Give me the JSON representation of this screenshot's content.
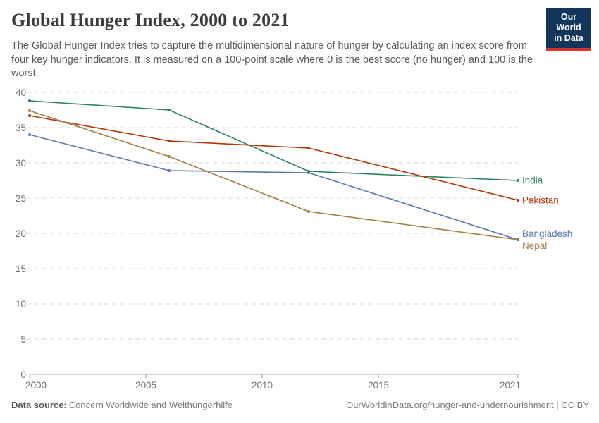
{
  "header": {
    "title": "Global Hunger Index, 2000 to 2021",
    "subtitle": "The Global Hunger Index tries to capture the multidimensional nature of hunger by calculating an index score from four key hunger indicators. It is measured on a 100-point scale where 0 is the best score (no hunger) and 100 is the worst."
  },
  "logo": {
    "line1": "Our World",
    "line2": "in Data",
    "background_color": "#12355b",
    "accent_color": "#d2352b"
  },
  "chart_data": {
    "type": "line",
    "title": "Global Hunger Index, 2000 to 2021",
    "x": [
      2000,
      2006,
      2012,
      2021
    ],
    "series": [
      {
        "name": "India",
        "color": "#2c8465",
        "values": [
          38.8,
          37.5,
          28.8,
          27.5
        ]
      },
      {
        "name": "Pakistan",
        "color": "#b13507",
        "values": [
          36.7,
          33.1,
          32.1,
          24.7
        ]
      },
      {
        "name": "Bangladesh",
        "color": "#5879b0",
        "values": [
          34.0,
          28.9,
          28.6,
          19.1
        ]
      },
      {
        "name": "Nepal",
        "color": "#a57e44",
        "values": [
          37.4,
          30.9,
          23.1,
          19.1
        ]
      }
    ],
    "xticks": [
      2000,
      2005,
      2010,
      2015,
      2021
    ],
    "yticks": [
      0,
      5,
      10,
      15,
      20,
      25,
      30,
      35,
      40
    ],
    "xlim": [
      2000,
      2021
    ],
    "ylim": [
      0,
      40
    ],
    "xlabel": "",
    "ylabel": "",
    "grid": true,
    "gridline_style": "dashed",
    "legend_position": "right-of-line-end"
  },
  "footer": {
    "source_label": "Data source:",
    "source_value": "Concern Worldwide and Welthungerhilfe",
    "credit": "OurWorldinData.org/hunger-and-undernourishment | CC BY"
  }
}
